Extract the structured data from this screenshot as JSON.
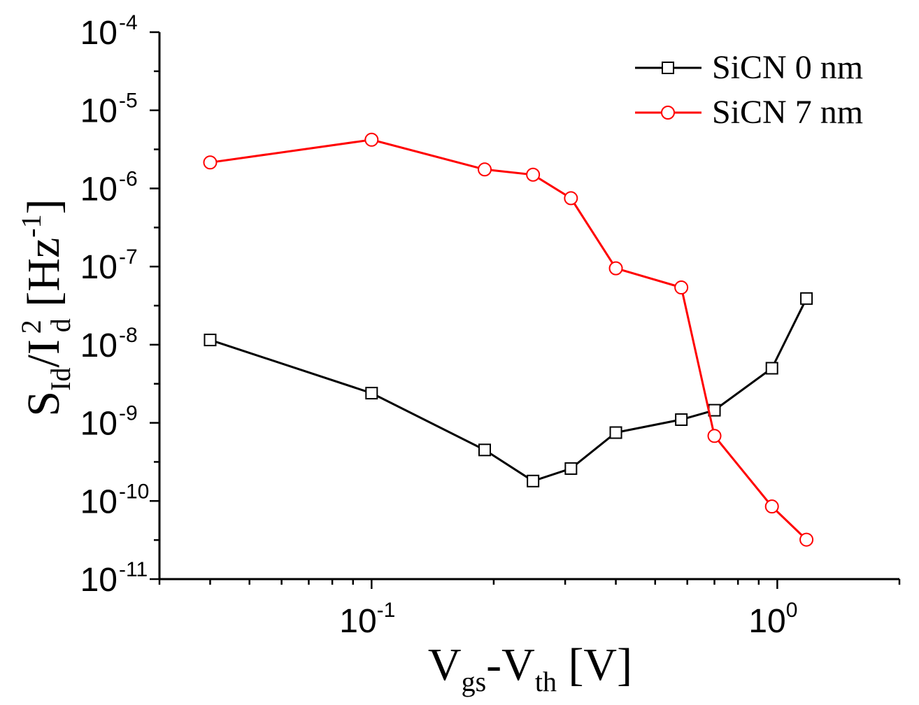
{
  "chart_data": {
    "type": "line",
    "x_scale": "log",
    "y_scale": "log",
    "xlim": [
      0.03,
      2.0
    ],
    "ylim_exp": [
      -11,
      -4
    ],
    "xlabel": {
      "main": "V",
      "sub1": "gs",
      "mid": "-V",
      "sub2": "th",
      "unit": " [V]"
    },
    "ylabel": {
      "s": "S",
      "s_sub": "Id",
      "slash_i": "/I",
      "i_sup": "2",
      "i_sub": "d",
      "unit_open": " [Hz",
      "unit_sup": "-1",
      "unit_close": "]"
    },
    "x_ticks": [
      {
        "base": "10",
        "exp": "-1",
        "value": 0.1
      },
      {
        "base": "10",
        "exp": "0",
        "value": 1.0
      }
    ],
    "y_ticks": [
      {
        "base": "10",
        "exp": "-4",
        "exp_value": -4
      },
      {
        "base": "10",
        "exp": "-5",
        "exp_value": -5
      },
      {
        "base": "10",
        "exp": "-6",
        "exp_value": -6
      },
      {
        "base": "10",
        "exp": "-7",
        "exp_value": -7
      },
      {
        "base": "10",
        "exp": "-8",
        "exp_value": -8
      },
      {
        "base": "10",
        "exp": "-9",
        "exp_value": -9
      },
      {
        "base": "10",
        "exp": "-10",
        "exp_value": -10
      },
      {
        "base": "10",
        "exp": "-11",
        "exp_value": -11
      }
    ],
    "legend_position": "top-right",
    "series": [
      {
        "name": "SiCN 0 nm",
        "color": "#000000",
        "marker": "square",
        "x": [
          0.04,
          0.1,
          0.19,
          0.25,
          0.31,
          0.4,
          0.58,
          0.7,
          0.97,
          1.18
        ],
        "y": [
          1.15e-08,
          2.4e-09,
          4.5e-10,
          1.8e-10,
          2.6e-10,
          7.5e-10,
          1.1e-09,
          1.45e-09,
          5e-09,
          3.9e-08
        ]
      },
      {
        "name": "SiCN 7 nm",
        "color": "#ff0000",
        "marker": "circle",
        "x": [
          0.04,
          0.1,
          0.19,
          0.25,
          0.31,
          0.4,
          0.58,
          0.7,
          0.97,
          1.18
        ],
        "y": [
          2.15e-06,
          4.2e-06,
          1.75e-06,
          1.5e-06,
          7.5e-07,
          9.5e-08,
          5.4e-08,
          6.8e-10,
          8.5e-11,
          3.2e-11
        ]
      }
    ]
  }
}
